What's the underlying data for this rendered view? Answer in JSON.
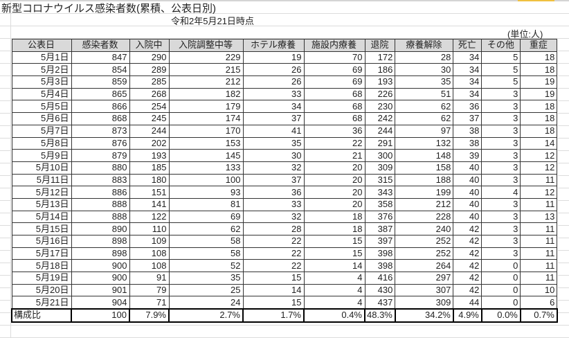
{
  "sheet": {
    "title": "新型コロナウイルス感染者数(累積、公表日別)",
    "subtitle": "令和2年5月21日時点",
    "unit": "(単位:人)"
  },
  "table": {
    "headers": [
      "公表日",
      "感染者数",
      "入院中",
      "入院調整中等",
      "ホテル療養",
      "施設内療養",
      "退院",
      "療養解除",
      "死亡",
      "その他",
      "重症"
    ],
    "rows": [
      [
        "5月1日",
        "847",
        "290",
        "229",
        "19",
        "70",
        "172",
        "28",
        "34",
        "5",
        "18"
      ],
      [
        "5月2日",
        "854",
        "289",
        "215",
        "26",
        "69",
        "186",
        "30",
        "34",
        "5",
        "18"
      ],
      [
        "5月3日",
        "859",
        "285",
        "212",
        "26",
        "69",
        "193",
        "35",
        "34",
        "5",
        "19"
      ],
      [
        "5月4日",
        "865",
        "268",
        "182",
        "33",
        "68",
        "226",
        "51",
        "34",
        "3",
        "19"
      ],
      [
        "5月5日",
        "866",
        "254",
        "179",
        "34",
        "68",
        "230",
        "62",
        "36",
        "3",
        "18"
      ],
      [
        "5月6日",
        "868",
        "245",
        "174",
        "37",
        "68",
        "242",
        "62",
        "37",
        "3",
        "18"
      ],
      [
        "5月7日",
        "873",
        "244",
        "170",
        "41",
        "36",
        "244",
        "97",
        "38",
        "3",
        "18"
      ],
      [
        "5月8日",
        "876",
        "202",
        "153",
        "35",
        "22",
        "291",
        "132",
        "38",
        "3",
        "14"
      ],
      [
        "5月9日",
        "879",
        "193",
        "145",
        "30",
        "21",
        "300",
        "148",
        "39",
        "3",
        "12"
      ],
      [
        "5月10日",
        "880",
        "185",
        "133",
        "32",
        "20",
        "309",
        "158",
        "40",
        "3",
        "12"
      ],
      [
        "5月11日",
        "883",
        "180",
        "100",
        "37",
        "20",
        "315",
        "188",
        "40",
        "3",
        "11"
      ],
      [
        "5月12日",
        "886",
        "151",
        "93",
        "36",
        "20",
        "343",
        "199",
        "40",
        "4",
        "12"
      ],
      [
        "5月13日",
        "888",
        "141",
        "81",
        "33",
        "20",
        "358",
        "212",
        "40",
        "3",
        "11"
      ],
      [
        "5月14日",
        "888",
        "122",
        "69",
        "32",
        "18",
        "376",
        "228",
        "40",
        "3",
        "13"
      ],
      [
        "5月15日",
        "890",
        "110",
        "62",
        "28",
        "18",
        "387",
        "240",
        "42",
        "3",
        "11"
      ],
      [
        "5月16日",
        "898",
        "109",
        "58",
        "22",
        "15",
        "397",
        "252",
        "42",
        "3",
        "11"
      ],
      [
        "5月17日",
        "898",
        "108",
        "58",
        "22",
        "15",
        "398",
        "252",
        "42",
        "3",
        "11"
      ],
      [
        "5月18日",
        "900",
        "108",
        "52",
        "22",
        "14",
        "398",
        "264",
        "42",
        "0",
        "11"
      ],
      [
        "5月19日",
        "900",
        "91",
        "35",
        "15",
        "4",
        "416",
        "297",
        "42",
        "0",
        "11"
      ],
      [
        "5月20日",
        "901",
        "79",
        "25",
        "14",
        "4",
        "430",
        "307",
        "42",
        "0",
        "10"
      ],
      [
        "5月21日",
        "904",
        "71",
        "24",
        "15",
        "4",
        "437",
        "309",
        "44",
        "0",
        "6"
      ]
    ],
    "total": [
      "構成比",
      "100",
      "7.9%",
      "2.7%",
      "1.7%",
      "0.4%",
      "48.3%",
      "34.2%",
      "4.9%",
      "0.0%",
      "0.7%"
    ]
  }
}
